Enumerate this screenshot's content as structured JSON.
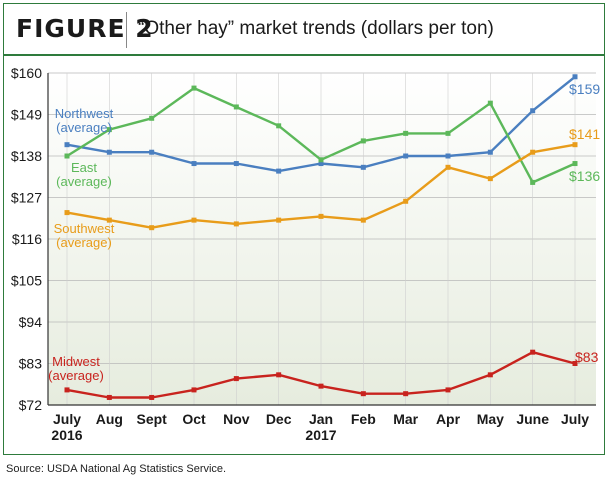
{
  "figure": {
    "label": "FIGURE 2",
    "title": "“Other hay” market trends (dollars per ton)"
  },
  "source": "Source: USDA National Ag Statistics Service.",
  "colors": {
    "frame": "#2e7b3c",
    "northwest": "#4a7fc0",
    "east": "#5cb85a",
    "southwest": "#e89c1a",
    "midwest": "#c8231e"
  },
  "chart_data": {
    "type": "line",
    "title": "“Other hay” market trends (dollars per ton)",
    "xlabel": "",
    "ylabel": "",
    "categories": [
      "July",
      "Aug",
      "Sept",
      "Oct",
      "Nov",
      "Dec",
      "Jan",
      "Feb",
      "Mar",
      "Apr",
      "May",
      "June",
      "July"
    ],
    "category_years": [
      "2016",
      "",
      "",
      "",
      "",
      "",
      "2017",
      "",
      "",
      "",
      "",
      "",
      ""
    ],
    "yticks": [
      "$160",
      "$149",
      "$138",
      "$127",
      "$116",
      "$105",
      "$94",
      "$83",
      "$72"
    ],
    "ylim": [
      72,
      160
    ],
    "grid": true,
    "series": [
      {
        "name": "Northwest (average)",
        "label_lines": [
          "Northwest",
          "(average)"
        ],
        "color": "#4a7fc0",
        "end_label": "$159",
        "values": [
          141,
          139,
          139,
          136,
          136,
          134,
          136,
          135,
          138,
          138,
          139,
          150,
          159
        ]
      },
      {
        "name": "East (average)",
        "label_lines": [
          "East",
          "(average)"
        ],
        "color": "#5cb85a",
        "end_label": "$136",
        "values": [
          138,
          145,
          148,
          156,
          151,
          146,
          137,
          142,
          144,
          144,
          152,
          131,
          136
        ]
      },
      {
        "name": "Southwest (average)",
        "label_lines": [
          "Southwest",
          "(average)"
        ],
        "color": "#e89c1a",
        "end_label": "$141",
        "values": [
          123,
          121,
          119,
          121,
          120,
          121,
          122,
          121,
          126,
          135,
          132,
          139,
          141
        ]
      },
      {
        "name": "Midwest (average)",
        "label_lines": [
          "Midwest",
          "(average)"
        ],
        "color": "#c8231e",
        "end_label": "$83",
        "values": [
          76,
          74,
          74,
          76,
          79,
          80,
          77,
          75,
          75,
          76,
          80,
          86,
          83
        ]
      }
    ]
  }
}
